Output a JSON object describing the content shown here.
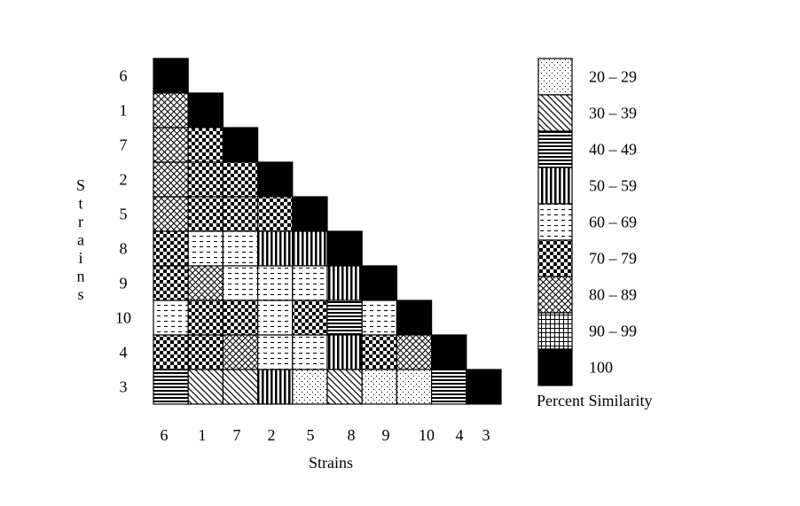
{
  "chart_data": {
    "type": "heatmap",
    "layout": "lower-triangular",
    "title": "",
    "xlabel": "Strains",
    "ylabel": "Strains",
    "strains": [
      "6",
      "1",
      "7",
      "2",
      "5",
      "8",
      "9",
      "10",
      "4",
      "3"
    ],
    "value_unit": "Percent Similarity bin",
    "matrix": [
      [
        "100"
      ],
      [
        "80-89",
        "100"
      ],
      [
        "80-89",
        "70-79",
        "100"
      ],
      [
        "80-89",
        "70-79",
        "70-79",
        "100"
      ],
      [
        "80-89",
        "70-79",
        "70-79",
        "70-79",
        "100"
      ],
      [
        "70-79",
        "60-69",
        "60-69",
        "50-59",
        "50-59",
        "100"
      ],
      [
        "70-79",
        "80-89",
        "60-69",
        "60-69",
        "60-69",
        "50-59",
        "100"
      ],
      [
        "60-69",
        "70-79",
        "70-79",
        "60-69",
        "70-79",
        "40-49",
        "60-69",
        "100"
      ],
      [
        "70-79",
        "70-79",
        "80-89",
        "60-69",
        "60-69",
        "50-59",
        "70-79",
        "80-89",
        "100"
      ],
      [
        "40-49",
        "30-39",
        "30-39",
        "50-59",
        "20-29",
        "30-39",
        "20-29",
        "20-29",
        "40-49",
        "100"
      ]
    ],
    "legend": {
      "title": "Percent Similarity",
      "position": "right",
      "entries": [
        {
          "label": "20 – 29",
          "bin": "20-29",
          "pattern": "dots"
        },
        {
          "label": "30 – 39",
          "bin": "30-39",
          "pattern": "diagonal"
        },
        {
          "label": "40 – 49",
          "bin": "40-49",
          "pattern": "horizontal"
        },
        {
          "label": "50 – 59",
          "bin": "50-59",
          "pattern": "vertical"
        },
        {
          "label": "60 – 69",
          "bin": "60-69",
          "pattern": "dashes"
        },
        {
          "label": "70 – 79",
          "bin": "70-79",
          "pattern": "checker"
        },
        {
          "label": "80 – 89",
          "bin": "80-89",
          "pattern": "crosshatch"
        },
        {
          "label": "90 – 99",
          "bin": "90-99",
          "pattern": "grid"
        },
        {
          "label": "100",
          "bin": "100",
          "pattern": "solid"
        }
      ]
    }
  }
}
